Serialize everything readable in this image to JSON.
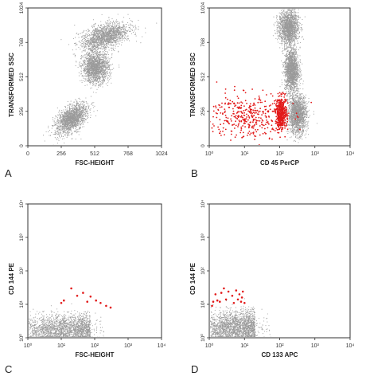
{
  "chart_data": [
    {
      "panel": "A",
      "type": "scatter",
      "xlabel": "FSC-HEIGHT",
      "ylabel": "TRANSFORMED SSC",
      "xscale": "linear",
      "yscale": "linear",
      "xlim": [
        0,
        1024
      ],
      "ylim": [
        0,
        1024
      ],
      "xticks": [
        "0",
        "256",
        "512",
        "768",
        "1024"
      ],
      "yticks": [
        "0",
        "256",
        "512",
        "768",
        "1024"
      ],
      "populations": [
        {
          "name": "gray",
          "color": "#9a9a9a",
          "shape": "cloud",
          "center": [
            335,
            200
          ],
          "spread": [
            70,
            40
          ],
          "angle": 40
        },
        {
          "name": "gray",
          "color": "#9a9a9a",
          "shape": "cloud",
          "center": [
            590,
            810
          ],
          "spread": [
            95,
            45
          ],
          "angle": 20
        },
        {
          "name": "gray",
          "color": "#9a9a9a",
          "shape": "cloud",
          "center": [
            520,
            580
          ],
          "spread": [
            50,
            55
          ],
          "angle": 0
        }
      ]
    },
    {
      "panel": "B",
      "type": "scatter",
      "xlabel": "CD 45 PerCP",
      "ylabel": "TRANSFORMED SSC",
      "xscale": "log",
      "yscale": "linear",
      "xlim": [
        1,
        10000
      ],
      "ylim": [
        0,
        1024
      ],
      "xticks": [
        "10⁰",
        "10¹",
        "10²",
        "10³",
        "10⁴"
      ],
      "yticks": [
        "0",
        "256",
        "512",
        "768",
        "1024"
      ],
      "populations": [
        {
          "name": "gray",
          "color": "#9a9a9a",
          "shape": "cloud",
          "center": [
            180,
            880
          ],
          "spread": [
            0.14,
            65
          ],
          "angle": 0
        },
        {
          "name": "gray",
          "color": "#9a9a9a",
          "shape": "cloud",
          "center": [
            220,
            560
          ],
          "spread": [
            0.1,
            80
          ],
          "angle": 0
        },
        {
          "name": "gray",
          "color": "#9a9a9a",
          "shape": "cloud",
          "center": [
            320,
            230
          ],
          "spread": [
            0.13,
            70
          ],
          "angle": 0
        },
        {
          "name": "red",
          "color": "#e21a1a",
          "shape": "cloud",
          "center": [
            110,
            240
          ],
          "spread": [
            0.08,
            60
          ],
          "angle": 0
        },
        {
          "name": "red",
          "color": "#e21a1a",
          "shape": "cloud",
          "center": [
            12,
            220
          ],
          "spread": [
            0.55,
            85
          ],
          "angle": 0
        }
      ]
    },
    {
      "panel": "C",
      "type": "scatter",
      "xlabel": "FSC-HEIGHT",
      "ylabel": "CD 144 PE",
      "xscale": "log",
      "yscale": "log",
      "xlim": [
        1,
        10000
      ],
      "ylim": [
        1,
        10000
      ],
      "xticks": [
        "10⁰",
        "10¹",
        "10²",
        "10³",
        "10⁴"
      ],
      "yticks": [
        "10⁰",
        "10¹",
        "10²",
        "10³",
        "10⁴"
      ],
      "populations": [
        {
          "name": "gray",
          "color": "#9a9a9a",
          "shape": "band",
          "xrange": [
            1,
            75
          ],
          "ycenter": 1.7,
          "spread": 0.22
        },
        {
          "name": "red",
          "color": "#e21a1a",
          "shape": "points",
          "points": [
            [
              10,
              11
            ],
            [
              12,
              13
            ],
            [
              20,
              30
            ],
            [
              30,
              18
            ],
            [
              45,
              22
            ],
            [
              60,
              12
            ],
            [
              75,
              17
            ],
            [
              110,
              13
            ],
            [
              150,
              11
            ],
            [
              220,
              9
            ],
            [
              300,
              8
            ]
          ]
        }
      ]
    },
    {
      "panel": "D",
      "type": "scatter",
      "xlabel": "CD 133 APC",
      "ylabel": "CD 144 PE",
      "xscale": "log",
      "yscale": "log",
      "xlim": [
        1,
        10000
      ],
      "ylim": [
        1,
        10000
      ],
      "xticks": [
        "10⁰",
        "10¹",
        "10²",
        "10³",
        "10⁴"
      ],
      "yticks": [
        "10⁰",
        "10¹",
        "10²",
        "10³",
        "10⁴"
      ],
      "populations": [
        {
          "name": "gray",
          "color": "#9a9a9a",
          "shape": "band",
          "xrange": [
            1,
            20
          ],
          "ycenter": 1.9,
          "spread": 0.25
        },
        {
          "name": "red",
          "color": "#e21a1a",
          "shape": "points",
          "points": [
            [
              1.3,
              12
            ],
            [
              1.5,
              20
            ],
            [
              2,
              12
            ],
            [
              2.6,
              30
            ],
            [
              3,
              14
            ],
            [
              3.5,
              24
            ],
            [
              4.5,
              18
            ],
            [
              5,
              11
            ],
            [
              5.8,
              26
            ],
            [
              6.5,
              14
            ],
            [
              7.2,
              20
            ],
            [
              8,
              12
            ],
            [
              8.5,
              16
            ],
            [
              9,
              24
            ],
            [
              10,
              11
            ],
            [
              1.2,
              9
            ],
            [
              1.7,
              13
            ],
            [
              2.2,
              22
            ]
          ]
        }
      ]
    }
  ]
}
